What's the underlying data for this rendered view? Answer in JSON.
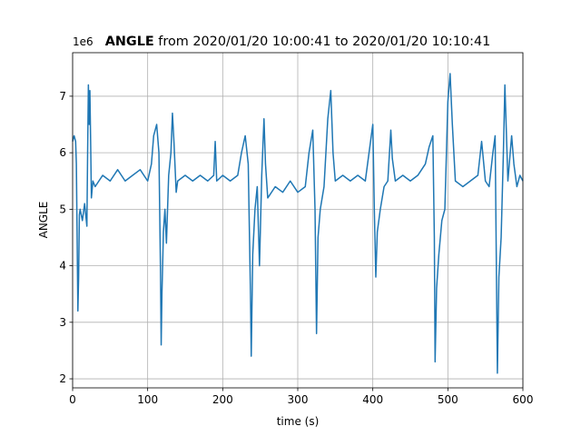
{
  "chart_data": {
    "type": "line",
    "title_bold": "ANGLE",
    "title": "from 2020/01/20 10:00:41 to 2020/01/20 10:10:41",
    "offset_text": "1e6",
    "x_label": "time (s)",
    "y_label": "ANGLE",
    "color": "#1f77b4",
    "grid": true,
    "xlim": [
      0,
      600
    ],
    "ylim": [
      1.84,
      7.77
    ],
    "xticks": [
      0,
      100,
      200,
      300,
      400,
      500,
      600
    ],
    "yticks": [
      2,
      3,
      4,
      5,
      6,
      7
    ],
    "x": [
      0,
      2,
      4,
      5,
      6,
      7,
      8,
      9,
      10,
      13,
      16,
      19,
      20,
      21,
      22,
      23,
      24,
      25,
      27,
      30,
      35,
      40,
      50,
      60,
      70,
      80,
      90,
      100,
      105,
      108,
      112,
      115,
      117,
      118,
      119,
      121,
      123,
      125,
      128,
      131,
      133,
      135,
      138,
      140,
      150,
      160,
      170,
      180,
      188,
      190,
      192,
      200,
      210,
      220,
      225,
      230,
      234,
      237,
      238,
      240,
      243,
      246,
      249,
      252,
      255,
      257,
      260,
      270,
      280,
      290,
      300,
      310,
      315,
      320,
      323,
      325,
      327,
      330,
      335,
      340,
      344,
      347,
      350,
      360,
      370,
      380,
      390,
      395,
      400,
      402,
      404,
      406,
      410,
      415,
      420,
      424,
      426,
      430,
      440,
      450,
      460,
      470,
      475,
      480,
      482,
      483,
      485,
      488,
      492,
      496,
      500,
      503,
      506,
      510,
      520,
      530,
      540,
      545,
      550,
      555,
      560,
      563,
      565,
      566,
      568,
      571,
      574,
      576,
      580,
      585,
      588,
      592,
      596,
      600
    ],
    "values": [
      6.2,
      6.3,
      6.2,
      5.8,
      4.5,
      3.2,
      3.8,
      4.9,
      5.0,
      4.8,
      5.1,
      4.7,
      6.0,
      7.2,
      6.5,
      7.1,
      6.2,
      5.2,
      5.5,
      5.4,
      5.5,
      5.6,
      5.5,
      5.7,
      5.5,
      5.6,
      5.7,
      5.5,
      5.8,
      6.3,
      6.5,
      6.0,
      4.0,
      2.6,
      3.5,
      4.6,
      5.0,
      4.4,
      5.6,
      6.0,
      6.7,
      6.2,
      5.3,
      5.5,
      5.6,
      5.5,
      5.6,
      5.5,
      5.6,
      6.2,
      5.5,
      5.6,
      5.5,
      5.6,
      6.0,
      6.3,
      5.8,
      3.5,
      2.4,
      4.2,
      5.0,
      5.4,
      4.0,
      5.6,
      6.6,
      5.8,
      5.2,
      5.4,
      5.3,
      5.5,
      5.3,
      5.4,
      6.0,
      6.4,
      5.0,
      2.8,
      4.5,
      5.0,
      5.4,
      6.6,
      7.1,
      6.0,
      5.5,
      5.6,
      5.5,
      5.6,
      5.5,
      6.0,
      6.5,
      5.0,
      3.8,
      4.6,
      5.0,
      5.4,
      5.5,
      6.4,
      5.9,
      5.5,
      5.6,
      5.5,
      5.6,
      5.8,
      6.1,
      6.3,
      4.5,
      2.3,
      3.6,
      4.2,
      4.8,
      5.0,
      6.9,
      7.4,
      6.5,
      5.5,
      5.4,
      5.5,
      5.6,
      6.2,
      5.5,
      5.4,
      6.0,
      6.3,
      3.5,
      2.1,
      3.8,
      4.5,
      6.0,
      7.2,
      5.5,
      6.3,
      5.8,
      5.4,
      5.6,
      5.5
    ]
  }
}
